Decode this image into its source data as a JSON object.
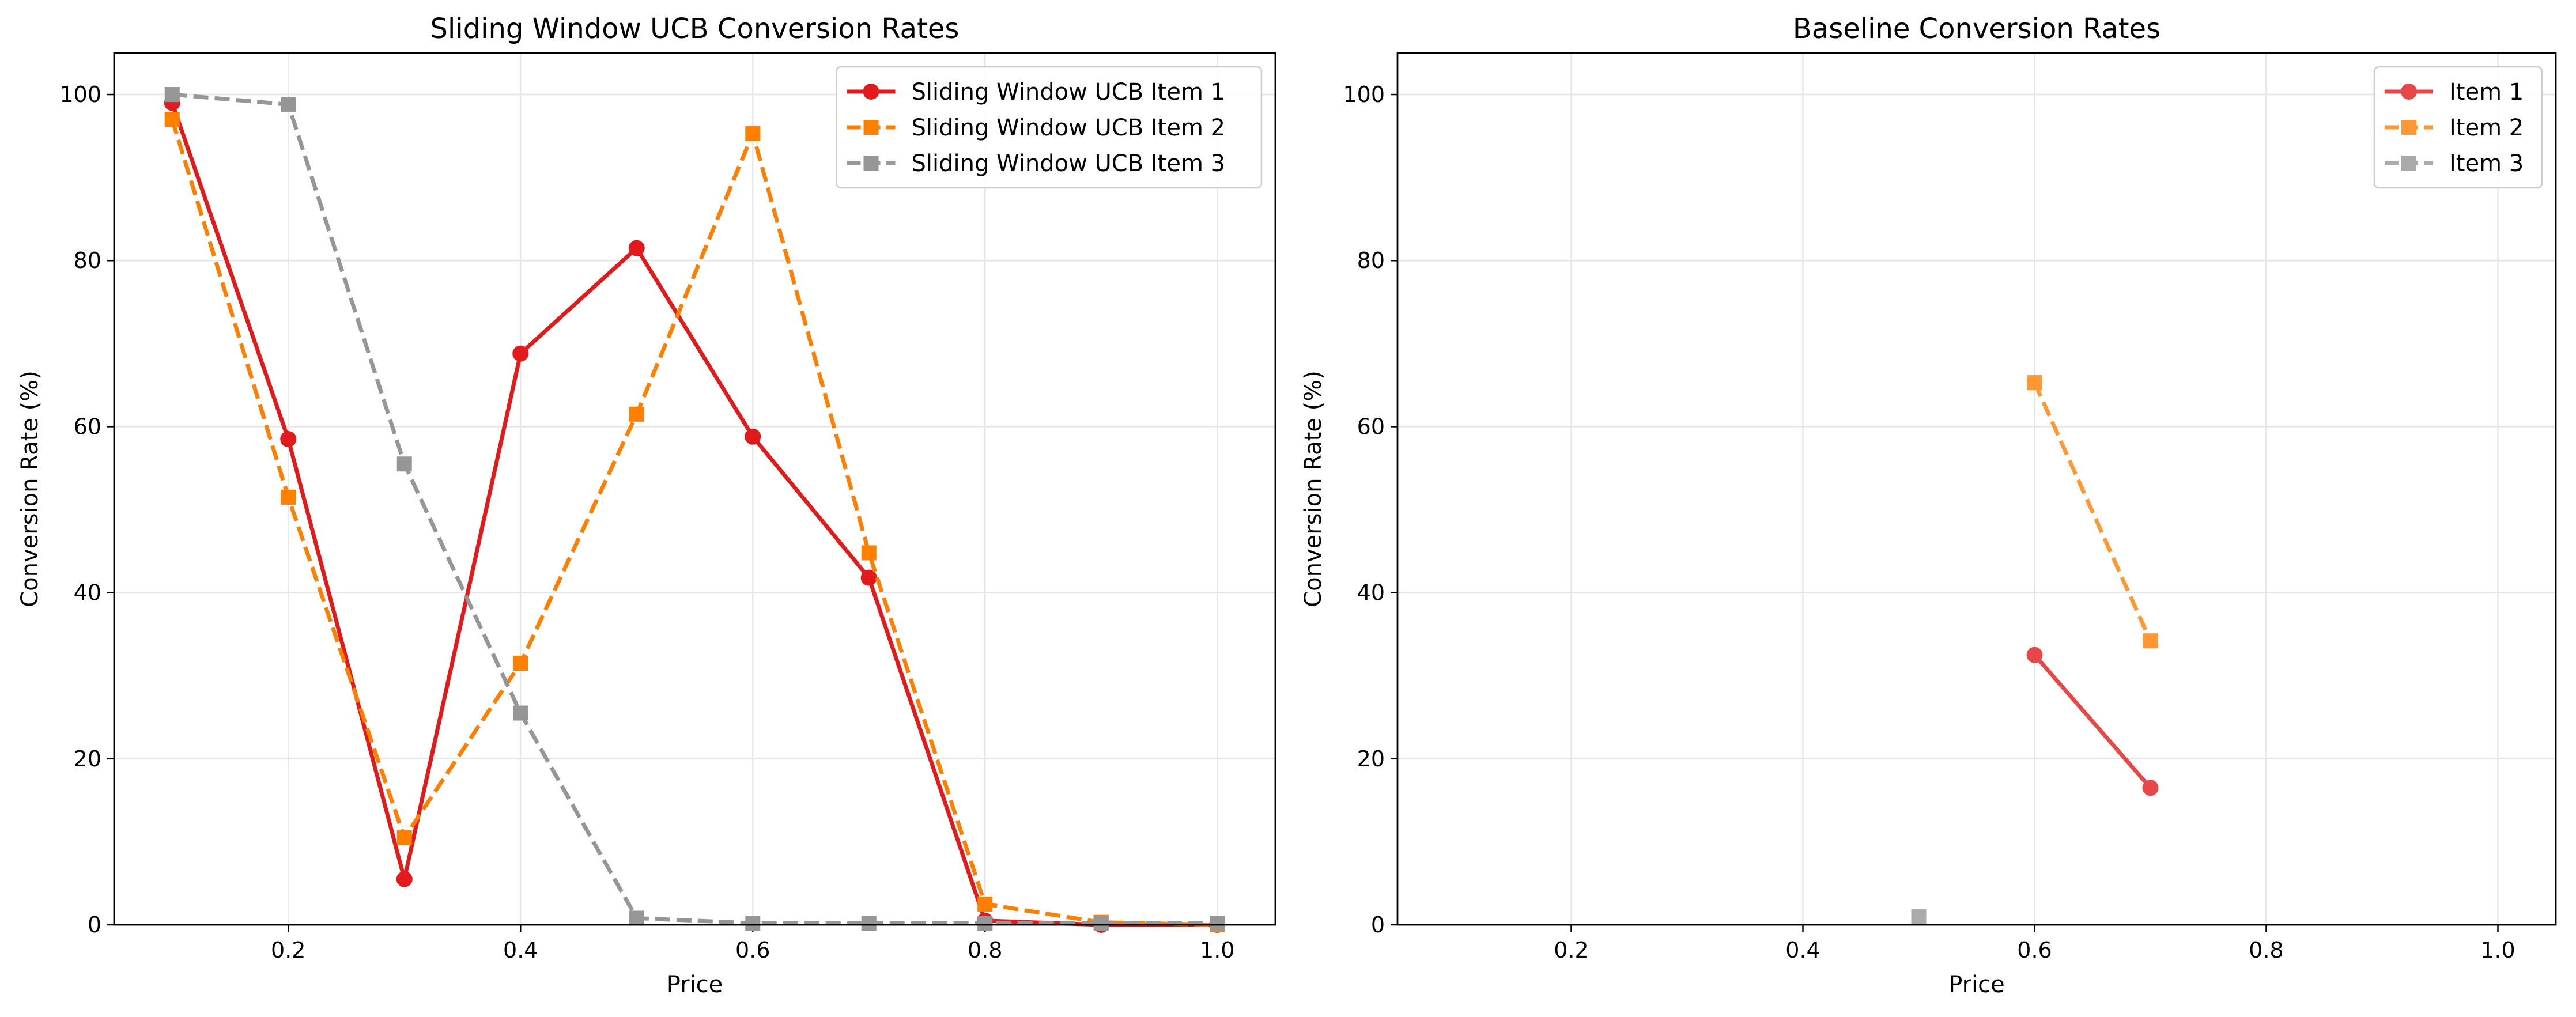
{
  "chart_data": [
    {
      "type": "line",
      "title": "Sliding Window UCB Conversion Rates",
      "xlabel": "Price",
      "ylabel": "Conversion Rate (%)",
      "xlim": [
        0.05,
        1.05
      ],
      "ylim": [
        0,
        105
      ],
      "xticks": [
        0.2,
        0.4,
        0.6,
        0.8,
        1.0
      ],
      "xtick_labels": [
        "0.2",
        "0.4",
        "0.6",
        "0.8",
        "1.0"
      ],
      "yticks": [
        0,
        20,
        40,
        60,
        80,
        100
      ],
      "ytick_labels": [
        "0",
        "20",
        "40",
        "60",
        "80",
        "100"
      ],
      "grid": true,
      "legend_position": "top-right",
      "series": [
        {
          "name": "Sliding Window UCB Item 1",
          "color": "#e31a1c",
          "marker": "circle",
          "dash": "solid",
          "alpha": 1,
          "x": [
            0.1,
            0.2,
            0.3,
            0.4,
            0.5,
            0.6,
            0.7,
            0.8,
            0.9,
            1.0
          ],
          "y": [
            99,
            58.5,
            5.5,
            68.8,
            81.5,
            58.8,
            41.8,
            0.5,
            0,
            0
          ]
        },
        {
          "name": "Sliding Window UCB Item 2",
          "color": "#ff7f00",
          "marker": "square",
          "dash": "dashed",
          "alpha": 1,
          "x": [
            0.1,
            0.2,
            0.3,
            0.4,
            0.5,
            0.6,
            0.7,
            0.8,
            0.9,
            1.0
          ],
          "y": [
            97,
            51.5,
            10.5,
            31.5,
            61.5,
            95.3,
            44.8,
            2.5,
            0.3,
            0
          ]
        },
        {
          "name": "Sliding Window UCB Item 3",
          "color": "#969696",
          "marker": "square",
          "dash": "dashed",
          "alpha": 1,
          "x": [
            0.1,
            0.2,
            0.3,
            0.4,
            0.5,
            0.6,
            0.7,
            0.8,
            0.9,
            1.0
          ],
          "y": [
            100,
            98.8,
            55.5,
            25.5,
            0.8,
            0.2,
            0.2,
            0.2,
            0.2,
            0.2
          ]
        }
      ]
    },
    {
      "type": "line",
      "title": "Baseline Conversion Rates",
      "xlabel": "Price",
      "ylabel": "Conversion Rate (%)",
      "xlim": [
        0.05,
        1.05
      ],
      "ylim": [
        0,
        105
      ],
      "xticks": [
        0.2,
        0.4,
        0.6,
        0.8,
        1.0
      ],
      "xtick_labels": [
        "0.2",
        "0.4",
        "0.6",
        "0.8",
        "1.0"
      ],
      "yticks": [
        0,
        20,
        40,
        60,
        80,
        100
      ],
      "ytick_labels": [
        "0",
        "20",
        "40",
        "60",
        "80",
        "100"
      ],
      "grid": true,
      "legend_position": "top-right",
      "series": [
        {
          "name": "Item 1",
          "color": "#e31a1c",
          "marker": "circle",
          "dash": "solid",
          "alpha": 0.8,
          "x": [
            0.6,
            0.7
          ],
          "y": [
            32.5,
            16.5
          ]
        },
        {
          "name": "Item 2",
          "color": "#ff7f00",
          "marker": "square",
          "dash": "dashed",
          "alpha": 0.8,
          "x": [
            0.6,
            0.7
          ],
          "y": [
            65.3,
            34.2
          ]
        },
        {
          "name": "Item 3",
          "color": "#969696",
          "marker": "square",
          "dash": "dashed",
          "alpha": 0.8,
          "x": [
            0.5
          ],
          "y": [
            1
          ]
        }
      ]
    }
  ]
}
